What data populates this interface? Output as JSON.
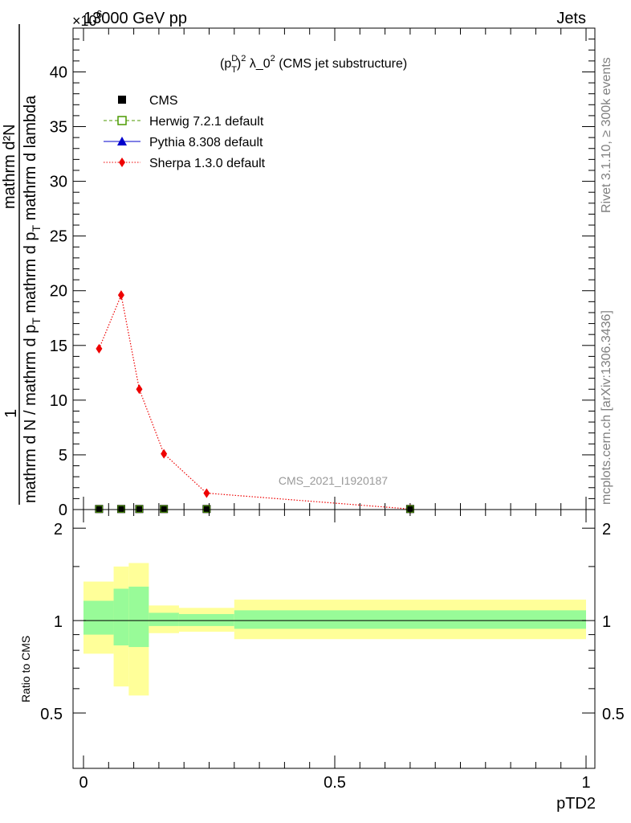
{
  "header": {
    "energy_label": "13000 GeV pp",
    "process_label": "Jets",
    "multiplier": "×10",
    "multiplier_exp": "6"
  },
  "side_labels": {
    "rivet": "Rivet 3.1.10, ≥ 300k events",
    "mcplots": "mcplots.cern.ch [arXiv:1306.3436]"
  },
  "watermark": "CMS_2021_I1920187",
  "main_panel": {
    "title_p": "(p",
    "title_sup_d": "D",
    "title_sub_t": "T",
    "title_close": ")",
    "title_sup_2": "2",
    "title_rest": " λ_0",
    "title_sup_b": "2",
    "title_tail": " (CMS jet substructure)",
    "ylabel_num": "mathrm d²N",
    "ylabel_den_1": "mathrm d N / mathrm d p",
    "ylabel_den_2": " mathrm d p",
    "ylabel_den_3": " mathrm d lambda",
    "ylabel_sub_t": "T",
    "ylabel_prefix": "1"
  },
  "ratio_panel": {
    "ylabel": "Ratio to CMS"
  },
  "chart_data": [
    {
      "type": "scatter",
      "xlabel": "pTD2",
      "xlim": [
        0,
        1
      ],
      "ylim": [
        0,
        44
      ],
      "y_scale_note": "×10^6",
      "x_ticks": [
        "0",
        "0.5",
        "1"
      ],
      "x_tick_values": [
        0,
        0.5,
        1
      ],
      "y_ticks": [
        "0",
        "5",
        "10",
        "15",
        "20",
        "25",
        "30",
        "35",
        "40"
      ],
      "y_tick_values": [
        0,
        5,
        10,
        15,
        20,
        25,
        30,
        35,
        40
      ],
      "legend_position": "top-left",
      "series": [
        {
          "name": "CMS",
          "color": "#000000",
          "marker": "square",
          "x": [
            0.031,
            0.075,
            0.111,
            0.16,
            0.245,
            0.65
          ],
          "y": [
            0.05,
            0.05,
            0.05,
            0.05,
            0.05,
            0.05
          ]
        },
        {
          "name": "Herwig 7.2.1 default",
          "color": "#4c9a00",
          "marker": "open-square",
          "line": "dashed",
          "x": [
            0.031,
            0.075,
            0.111,
            0.16,
            0.245,
            0.65
          ],
          "y": [
            0.05,
            0.05,
            0.05,
            0.05,
            0.05,
            0.05
          ]
        },
        {
          "name": "Pythia 8.308 default",
          "color": "#0000cc",
          "marker": "triangle",
          "line": "solid",
          "x": [
            0.031,
            0.075,
            0.111,
            0.16,
            0.245,
            0.65
          ],
          "y": [
            0.05,
            0.05,
            0.05,
            0.05,
            0.05,
            0.05
          ]
        },
        {
          "name": "Sherpa 1.3.0 default",
          "color": "#ee0000",
          "marker": "diamond",
          "line": "dotted",
          "x": [
            0.031,
            0.075,
            0.111,
            0.16,
            0.245,
            0.65
          ],
          "y": [
            14.7,
            19.6,
            11.0,
            5.1,
            1.5,
            0.05
          ]
        }
      ]
    },
    {
      "type": "area",
      "ylabel": "Ratio to CMS",
      "xlim": [
        0,
        1
      ],
      "ylim": [
        0.33,
        2.3
      ],
      "y_ticks": [
        "0.5",
        "1",
        "2"
      ],
      "y_tick_values": [
        0.5,
        1,
        2
      ],
      "bins": [
        {
          "x_low": 0.0,
          "x_high": 0.06,
          "stat_low": 0.9,
          "stat_high": 1.16,
          "tot_low": 0.78,
          "tot_high": 1.34
        },
        {
          "x_low": 0.06,
          "x_high": 0.09,
          "stat_low": 0.83,
          "stat_high": 1.27,
          "tot_low": 0.61,
          "tot_high": 1.5
        },
        {
          "x_low": 0.09,
          "x_high": 0.13,
          "stat_low": 0.82,
          "stat_high": 1.29,
          "tot_low": 0.57,
          "tot_high": 1.54
        },
        {
          "x_low": 0.13,
          "x_high": 0.19,
          "stat_low": 0.96,
          "stat_high": 1.06,
          "tot_low": 0.91,
          "tot_high": 1.12
        },
        {
          "x_low": 0.19,
          "x_high": 0.3,
          "stat_low": 0.96,
          "stat_high": 1.05,
          "tot_low": 0.92,
          "tot_high": 1.1
        },
        {
          "x_low": 0.3,
          "x_high": 1.0,
          "stat_low": 0.94,
          "stat_high": 1.08,
          "tot_low": 0.87,
          "tot_high": 1.17
        }
      ],
      "reference_line": 1.0
    }
  ],
  "colors": {
    "stat_band": "#98fb98",
    "total_band": "#ffff99",
    "sherpa": "#ee0000",
    "herwig": "#4c9a00",
    "pythia": "#0000cc"
  }
}
